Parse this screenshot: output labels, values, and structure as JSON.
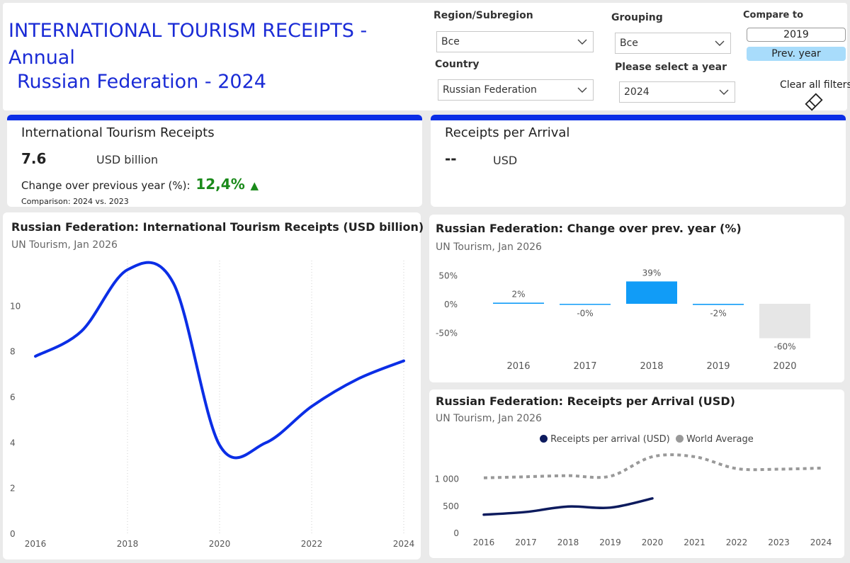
{
  "header": {
    "title_line1": "INTERNATIONAL TOURISM RECEIPTS -",
    "title_line2": "Annual",
    "title_line3": "Russian Federation - 2024",
    "filters": {
      "region_label": "Region/Subregion",
      "region_value": "Все",
      "country_label": "Country",
      "country_value": "Russian Federation",
      "grouping_label": "Grouping",
      "grouping_value": "Все",
      "year_label": "Please select a year",
      "year_value": "2024",
      "compare_label": "Compare to",
      "compare_options": [
        "2019",
        "Prev. year"
      ],
      "compare_selected": "Prev. year",
      "clear_label": "Clear all filters"
    }
  },
  "kpi_receipts": {
    "title": "International Tourism Receipts",
    "value": "7.6",
    "unit": "USD billion",
    "change_label": "Change over previous year (%):",
    "change_value": "12,4%",
    "change_arrow": "▲",
    "change_color": "#1a8a1a",
    "comparison": "Comparison: 2024 vs. 2023"
  },
  "kpi_per_arrival": {
    "title": "Receipts per Arrival",
    "value": "--",
    "unit": "USD"
  },
  "colors": {
    "accent": "#0b2ee6",
    "bar_positive": "#119cf7",
    "bar_negative": "#e6e6e6",
    "world_avg": "#999999",
    "per_arrival_line": "#0d1b5e"
  },
  "chart_data": [
    {
      "id": "receipts",
      "type": "line",
      "title": "Russian Federation: International Tourism Receipts (USD billion)",
      "subtitle": "UN Tourism, Jan 2026",
      "x": [
        2016,
        2017,
        2018,
        2019,
        2020,
        2021,
        2022,
        2023,
        2024
      ],
      "x_ticks": [
        "2016",
        "2018",
        "2020",
        "2022",
        "2024"
      ],
      "series": [
        {
          "values": [
            7.8,
            8.9,
            11.6,
            11.0,
            3.9,
            4.0,
            5.6,
            6.8,
            7.6
          ]
        }
      ],
      "y_ticks": [
        "0",
        "2",
        "4",
        "6",
        "8",
        "10"
      ],
      "ylim": [
        0,
        12
      ],
      "grid": "vertical"
    },
    {
      "id": "change",
      "type": "bar",
      "title": "Russian Federation: Change over prev. year (%)",
      "subtitle": "UN Tourism, Jan 2026",
      "categories": [
        "2016",
        "2017",
        "2018",
        "2019",
        "2020"
      ],
      "values": [
        2,
        -0.1,
        39,
        -2,
        -60
      ],
      "labels": [
        "2%",
        "-0%",
        "39%",
        "-2%",
        "-60%"
      ],
      "y_ticks": [
        "50%",
        "0%",
        "-50%"
      ],
      "ylim": [
        -70,
        55
      ]
    },
    {
      "id": "per_arrival",
      "type": "line",
      "title": "Russian Federation: Receipts per Arrival (USD)",
      "subtitle": "UN Tourism, Jan 2026",
      "x": [
        2016,
        2017,
        2018,
        2019,
        2020,
        2021,
        2022,
        2023,
        2024
      ],
      "x_ticks": [
        "2016",
        "2017",
        "2018",
        "2019",
        "2020",
        "2021",
        "2022",
        "2023",
        "2024"
      ],
      "series": [
        {
          "name": "Receipts per arrival (USD)",
          "values": [
            330,
            380,
            480,
            460,
            630,
            null,
            null,
            null,
            null
          ]
        },
        {
          "name": "World Average",
          "values": [
            1010,
            1030,
            1050,
            1040,
            1400,
            1400,
            1180,
            1170,
            1190
          ]
        }
      ],
      "legend": "top-center",
      "y_ticks": [
        "0",
        "500",
        "1 000"
      ],
      "ylim": [
        0,
        1600
      ]
    }
  ]
}
